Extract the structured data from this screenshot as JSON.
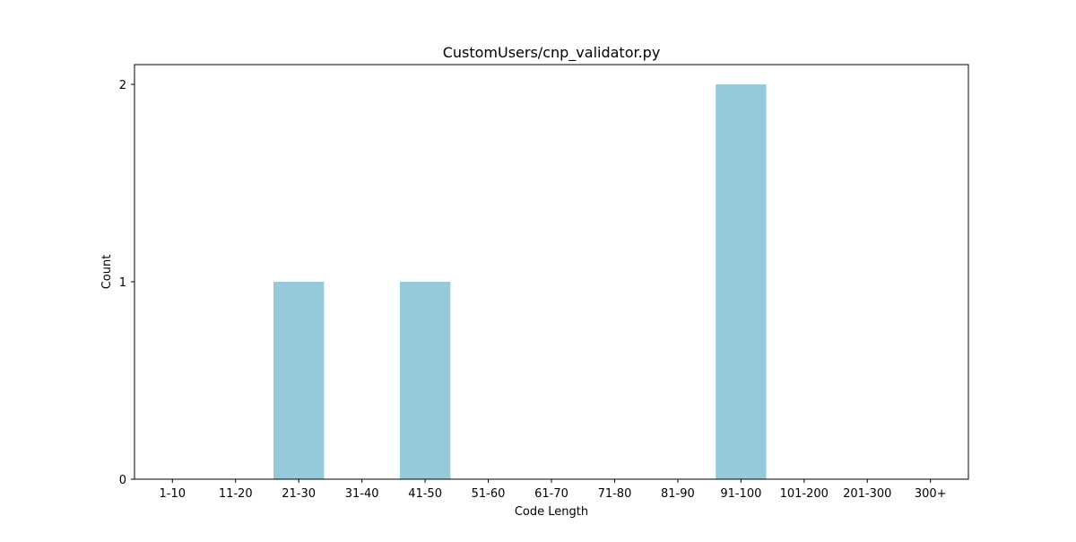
{
  "chart_data": {
    "type": "bar",
    "title": "CustomUsers/cnp_validator.py",
    "xlabel": "Code Length",
    "ylabel": "Count",
    "categories": [
      "1-10",
      "11-20",
      "21-30",
      "31-40",
      "41-50",
      "51-60",
      "61-70",
      "71-80",
      "81-90",
      "91-100",
      "101-200",
      "201-300",
      "300+"
    ],
    "values": [
      0,
      0,
      1,
      0,
      1,
      0,
      0,
      0,
      0,
      2,
      0,
      0,
      0
    ],
    "ylim": [
      0,
      2.1
    ],
    "yticks": [
      0,
      1,
      2
    ],
    "bar_color": "#96c9dc",
    "grid": false,
    "legend": "none"
  }
}
